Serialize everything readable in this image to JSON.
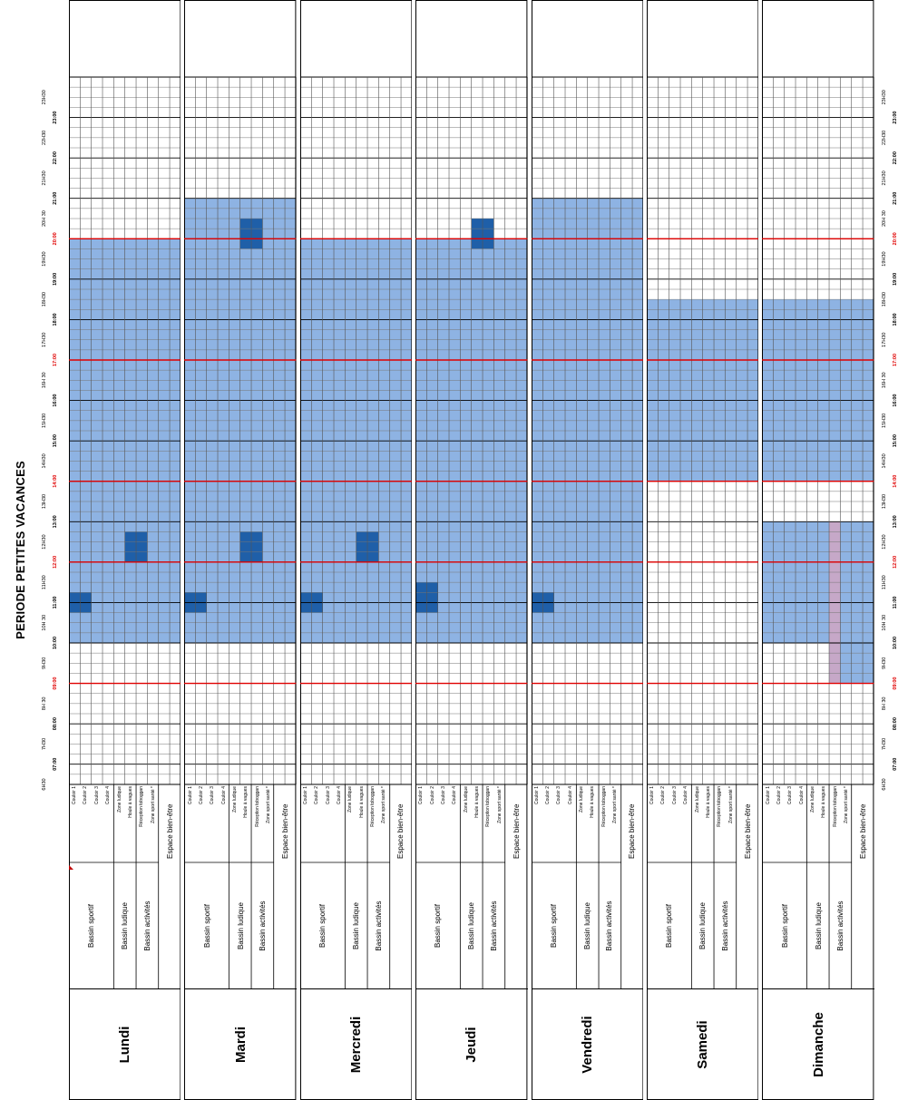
{
  "title": "PERIODE PETITES VACANCES",
  "colors": {
    "open": "#8eb3e3",
    "reserved": "#1f5fa8",
    "pink": "#c6a8c8",
    "red_line": "#e00000",
    "grid": "#000000"
  },
  "time_labels": {
    "half_hours": [
      "6H30",
      "7H30",
      "8H 30",
      "9H30",
      "10H 30",
      "11H30",
      "12H30",
      "13H30",
      "14H30",
      "15H30",
      "16H 30",
      "17H30",
      "18H30",
      "19H30",
      "20H 30",
      "21H30",
      "22H30",
      "23H30"
    ],
    "hours": [
      "07:00",
      "08:00",
      "09:00",
      "10:00",
      "11:00",
      "12:00",
      "13:00",
      "14:00",
      "15:00",
      "16:00",
      "17:00",
      "18:00",
      "19:00",
      "20:00",
      "21:00",
      "22:00",
      "23:00"
    ],
    "red_hours": [
      "09:00",
      "12:00",
      "14:00",
      "17:00",
      "20:00"
    ]
  },
  "row_labels": {
    "bassin_sportif": "Bassin sportif",
    "bassin_ludique": "Bassin ludique",
    "bassin_activites": "Bassin activités",
    "espace_bien_etre": "Espace bien-être",
    "couloir_1": "Couloir 1",
    "couloir_2": "Couloir 2",
    "couloir_3": "Couloir 3",
    "couloir_4": "Couloir 4",
    "zone_ludique": "Zone ludique",
    "houle_a_vagues": "Houle à vagues",
    "reception_toboggan": "Réception toboggan",
    "zone_sport_sante": "Zone sport santé *"
  },
  "days": [
    {
      "name": "Lundi",
      "open_from": "10:00",
      "open_to": "20:00",
      "reserved": [
        {
          "rows": [
            0,
            1
          ],
          "from": "10:45",
          "to": "11:15"
        },
        {
          "rows": [
            5,
            6
          ],
          "from": "12:00",
          "to": "12:45"
        }
      ]
    },
    {
      "name": "Mardi",
      "open_from": "10:00",
      "open_to": "21:00",
      "reserved": [
        {
          "rows": [
            0,
            1
          ],
          "from": "10:45",
          "to": "11:15"
        },
        {
          "rows": [
            5,
            6
          ],
          "from": "12:00",
          "to": "12:45"
        },
        {
          "rows": [
            5,
            6
          ],
          "from": "19:45",
          "to": "20:30"
        }
      ]
    },
    {
      "name": "Mercredi",
      "open_from": "10:00",
      "open_to": "20:00",
      "reserved": [
        {
          "rows": [
            0,
            1
          ],
          "from": "10:45",
          "to": "11:15"
        },
        {
          "rows": [
            5,
            6
          ],
          "from": "12:00",
          "to": "12:45"
        }
      ]
    },
    {
      "name": "Jeudi",
      "open_from": "10:00",
      "open_to": "20:00",
      "reserved": [
        {
          "rows": [
            0,
            1
          ],
          "from": "10:45",
          "to": "11:30"
        },
        {
          "rows": [
            5,
            6
          ],
          "from": "19:45",
          "to": "20:30"
        }
      ]
    },
    {
      "name": "Vendredi",
      "open_from": "10:00",
      "open_to": "21:00",
      "reserved": [
        {
          "rows": [
            0,
            1
          ],
          "from": "10:45",
          "to": "11:15"
        }
      ]
    },
    {
      "name": "Samedi",
      "open_from": "14:00",
      "open_to": "18:30",
      "reserved": []
    },
    {
      "name": "Dimanche",
      "split": [
        {
          "from": "09:00",
          "to": "13:00"
        },
        {
          "from": "14:00",
          "to": "18:30"
        }
      ],
      "narrow_morning": {
        "from": "09:00",
        "to": "10:00"
      },
      "pink_row": 6,
      "reserved": []
    }
  ]
}
